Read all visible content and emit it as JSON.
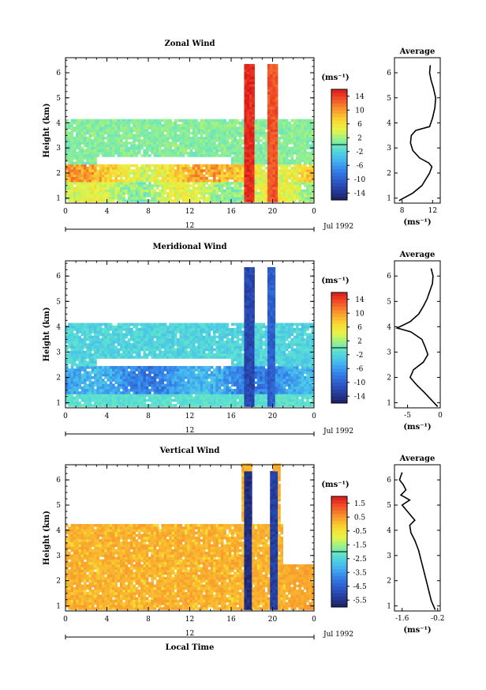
{
  "chart_data": [
    {
      "type": "heatmap",
      "title": "Zonal Wind",
      "ylabel": "Height (km)",
      "ylim": [
        0.8,
        6.6
      ],
      "yticks": [
        "1",
        "2",
        "3",
        "4",
        "5",
        "6"
      ],
      "xticks": [
        "0",
        "4",
        "8",
        "12",
        "16",
        "20",
        "0"
      ],
      "xlim": [
        0,
        24
      ],
      "date_tick": "12",
      "date_label": "Jul 1992",
      "colorbar": {
        "unit": "(ms⁻¹)",
        "ticks": [
          14,
          10,
          6,
          2,
          -2,
          -6,
          -10,
          -14
        ],
        "range": [
          -16,
          16
        ]
      },
      "field": {
        "kind": "zonal",
        "gaps": [
          [
            0,
            24,
            4.15,
            6.6
          ],
          [
            17.2,
            18.2,
            4.15,
            6.3
          ],
          [
            19.6,
            20.6,
            4.15,
            6.3
          ],
          [
            3,
            16,
            2.35,
            2.65
          ]
        ],
        "bursts": [
          {
            "x": 17.8,
            "halfwidth": 0.55,
            "top": 6.25,
            "value": 15
          },
          {
            "x": 20.1,
            "halfwidth": 0.5,
            "top": 6.25,
            "value": 13
          }
        ]
      },
      "profile": {
        "title": "Average",
        "xlabel": "(ms⁻¹)",
        "xlim": [
          7,
          13
        ],
        "xticks": [
          "8",
          "12"
        ],
        "points": [
          {
            "h": 0.9,
            "v": 7.6
          },
          {
            "h": 1.2,
            "v": 9.4
          },
          {
            "h": 1.5,
            "v": 10.6
          },
          {
            "h": 1.8,
            "v": 11.2
          },
          {
            "h": 2.0,
            "v": 11.6
          },
          {
            "h": 2.25,
            "v": 11.9
          },
          {
            "h": 2.4,
            "v": 11.5
          },
          {
            "h": 2.6,
            "v": 10.3
          },
          {
            "h": 2.9,
            "v": 9.4
          },
          {
            "h": 3.2,
            "v": 9.1
          },
          {
            "h": 3.5,
            "v": 9.2
          },
          {
            "h": 3.7,
            "v": 9.8
          },
          {
            "h": 3.85,
            "v": 11.6
          },
          {
            "h": 4.2,
            "v": 12.0
          },
          {
            "h": 4.6,
            "v": 12.3
          },
          {
            "h": 5.0,
            "v": 12.4
          },
          {
            "h": 5.4,
            "v": 12.1
          },
          {
            "h": 5.7,
            "v": 11.8
          },
          {
            "h": 6.0,
            "v": 11.6
          },
          {
            "h": 6.3,
            "v": 11.7
          }
        ]
      }
    },
    {
      "type": "heatmap",
      "title": "Meridional Wind",
      "ylabel": "Height (km)",
      "ylim": [
        0.8,
        6.6
      ],
      "yticks": [
        "1",
        "2",
        "3",
        "4",
        "5",
        "6"
      ],
      "xticks": [
        "0",
        "4",
        "8",
        "12",
        "16",
        "20",
        "0"
      ],
      "xlim": [
        0,
        24
      ],
      "date_tick": "12",
      "date_label": "Jul 1992",
      "colorbar": {
        "unit": "(ms⁻¹)",
        "ticks": [
          14,
          10,
          6,
          2,
          -2,
          -6,
          -10,
          -14
        ],
        "range": [
          -16,
          16
        ]
      },
      "field": {
        "kind": "meridional",
        "gaps": [
          [
            0,
            24,
            4.1,
            6.6
          ],
          [
            17.0,
            18.2,
            4.1,
            6.3
          ],
          [
            19.4,
            20.4,
            4.1,
            6.3
          ],
          [
            3,
            16,
            2.4,
            2.7
          ]
        ],
        "bursts": [
          {
            "x": 17.7,
            "halfwidth": 0.5,
            "top": 6.25,
            "value": -12
          },
          {
            "x": 19.9,
            "halfwidth": 0.45,
            "top": 6.25,
            "value": -10
          }
        ]
      },
      "profile": {
        "title": "Average",
        "xlabel": "(ms⁻¹)",
        "xlim": [
          -7,
          0
        ],
        "xticks": [
          "-5",
          "0"
        ],
        "points": [
          {
            "h": 0.85,
            "v": -0.4
          },
          {
            "h": 1.1,
            "v": -1.3
          },
          {
            "h": 1.4,
            "v": -2.4
          },
          {
            "h": 1.7,
            "v": -3.6
          },
          {
            "h": 2.0,
            "v": -4.6
          },
          {
            "h": 2.3,
            "v": -4.1
          },
          {
            "h": 2.6,
            "v": -2.6
          },
          {
            "h": 2.9,
            "v": -1.9
          },
          {
            "h": 3.2,
            "v": -2.3
          },
          {
            "h": 3.5,
            "v": -2.8
          },
          {
            "h": 3.8,
            "v": -4.5
          },
          {
            "h": 3.95,
            "v": -6.6
          },
          {
            "h": 4.2,
            "v": -4.6
          },
          {
            "h": 4.5,
            "v": -3.3
          },
          {
            "h": 4.8,
            "v": -2.6
          },
          {
            "h": 5.1,
            "v": -2.0
          },
          {
            "h": 5.4,
            "v": -1.6
          },
          {
            "h": 5.7,
            "v": -1.2
          },
          {
            "h": 6.0,
            "v": -1.1
          },
          {
            "h": 6.3,
            "v": -1.4
          }
        ]
      }
    },
    {
      "type": "heatmap",
      "title": "Vertical Wind",
      "ylabel": "Height (km)",
      "xlabel": "Local Time",
      "ylim": [
        0.8,
        6.6
      ],
      "yticks": [
        "1",
        "2",
        "3",
        "4",
        "5",
        "6"
      ],
      "xticks": [
        "0",
        "4",
        "8",
        "12",
        "16",
        "20",
        "0"
      ],
      "xlim": [
        0,
        24
      ],
      "date_tick": "12",
      "date_label": "Jul 1992",
      "colorbar": {
        "unit": "(ms⁻¹)",
        "ticks": [
          1.5,
          0.5,
          -0.5,
          -1.5,
          -2.5,
          -3.5,
          -4.5,
          -5.5
        ],
        "range": [
          -6,
          2
        ]
      },
      "field": {
        "kind": "vertical",
        "gaps": [
          [
            0,
            17.0,
            4.2,
            6.6
          ],
          [
            18.0,
            19.8,
            4.2,
            6.6
          ],
          [
            21.0,
            24,
            2.6,
            6.6
          ],
          [
            20.6,
            24,
            4.2,
            6.6
          ]
        ],
        "bursts": [
          {
            "x": 17.6,
            "halfwidth": 0.45,
            "top": 6.3,
            "value": -5.6
          },
          {
            "x": 20.1,
            "halfwidth": 0.4,
            "top": 6.3,
            "value": -5.2
          }
        ]
      },
      "profile": {
        "title": "Average",
        "xlabel": "(ms⁻¹)",
        "xlim": [
          -1.9,
          -0.1
        ],
        "xticks": [
          "-1.6",
          "-0.2"
        ],
        "points": [
          {
            "h": 0.85,
            "v": -0.3
          },
          {
            "h": 1.2,
            "v": -0.45
          },
          {
            "h": 1.6,
            "v": -0.55
          },
          {
            "h": 2.0,
            "v": -0.65
          },
          {
            "h": 2.4,
            "v": -0.75
          },
          {
            "h": 2.8,
            "v": -0.85
          },
          {
            "h": 3.2,
            "v": -0.95
          },
          {
            "h": 3.6,
            "v": -1.1
          },
          {
            "h": 3.9,
            "v": -1.25
          },
          {
            "h": 4.2,
            "v": -1.3
          },
          {
            "h": 4.4,
            "v": -1.1
          },
          {
            "h": 4.7,
            "v": -1.35
          },
          {
            "h": 5.0,
            "v": -1.6
          },
          {
            "h": 5.2,
            "v": -1.3
          },
          {
            "h": 5.4,
            "v": -1.65
          },
          {
            "h": 5.6,
            "v": -1.45
          },
          {
            "h": 5.8,
            "v": -1.55
          },
          {
            "h": 6.0,
            "v": -1.7
          },
          {
            "h": 6.3,
            "v": -1.6
          }
        ]
      }
    }
  ]
}
